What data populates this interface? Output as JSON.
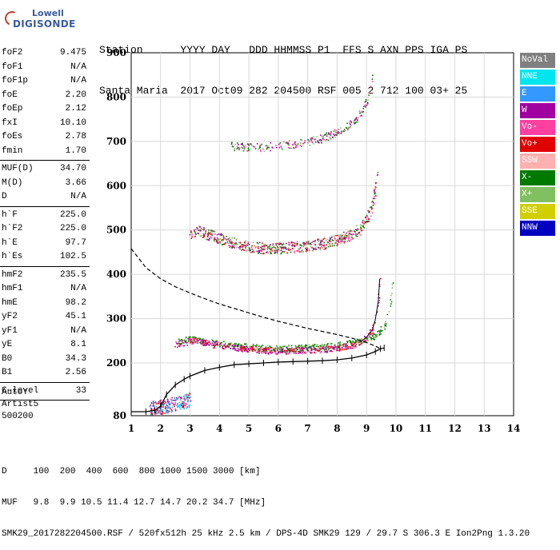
{
  "logo": {
    "top": "Lowell",
    "bottom": "DIGISONDE"
  },
  "header": {
    "line1": "Station      YYYY DAY   DDD HHMMSS P1  FFS S AXN PPS IGA PS",
    "line2": "Santa Maria  2017 Oct09 282 204500 RSF 005 2 712 100 03+ 25"
  },
  "params_groups": [
    [
      {
        "k": "foF2",
        "v": "9.475"
      },
      {
        "k": "foF1",
        "v": "N/A"
      },
      {
        "k": "foF1p",
        "v": "N/A"
      },
      {
        "k": "foE",
        "v": "2.20"
      },
      {
        "k": "foEp",
        "v": "2.12"
      },
      {
        "k": "fxI",
        "v": "10.10"
      },
      {
        "k": "foEs",
        "v": "2.78"
      },
      {
        "k": "fmin",
        "v": "1.70"
      }
    ],
    [
      {
        "k": "MUF(D)",
        "v": "34.70"
      },
      {
        "k": "M(D)",
        "v": "3.66"
      },
      {
        "k": "D",
        "v": "N/A"
      }
    ],
    [
      {
        "k": "h`F",
        "v": "225.0"
      },
      {
        "k": "h`F2",
        "v": "225.0"
      },
      {
        "k": "h`E",
        "v": "97.7"
      },
      {
        "k": "h`Es",
        "v": "102.5"
      }
    ],
    [
      {
        "k": "hmF2",
        "v": "235.5"
      },
      {
        "k": "hmF1",
        "v": "N/A"
      },
      {
        "k": "hmE",
        "v": "98.2"
      },
      {
        "k": "yF2",
        "v": "45.1"
      },
      {
        "k": "yF1",
        "v": "N/A"
      },
      {
        "k": "yE",
        "v": "8.1"
      },
      {
        "k": "B0",
        "v": "34.3"
      },
      {
        "k": "B1",
        "v": "2.56"
      }
    ],
    [
      {
        "k": "C-level",
        "v": "33"
      }
    ]
  ],
  "auto": {
    "line1": "Auto:",
    "line2": "Artist5",
    "line3": "500200"
  },
  "legend": [
    {
      "label": "NoVal",
      "color": "#808080",
      "text": "#ffffff"
    },
    {
      "label": "NNE",
      "color": "#00e5ee",
      "text": "#ffffff"
    },
    {
      "label": "E",
      "color": "#3399ff",
      "text": "#ffffff"
    },
    {
      "label": "W",
      "color": "#a000a0",
      "text": "#ffffff"
    },
    {
      "label": "Vo-",
      "color": "#ff40a0",
      "text": "#ffffff"
    },
    {
      "label": "Vo+",
      "color": "#e00000",
      "text": "#ffffff"
    },
    {
      "label": "SSW",
      "color": "#ffb0b0",
      "text": "#ffffff"
    },
    {
      "label": "X-",
      "color": "#007a00",
      "text": "#ffffff"
    },
    {
      "label": "X+",
      "color": "#80c060",
      "text": "#ffffff"
    },
    {
      "label": "SSE",
      "color": "#d0d000",
      "text": "#ffffff"
    },
    {
      "label": "NNW",
      "color": "#0000c0",
      "text": "#ffffff"
    }
  ],
  "footer": {
    "line1": "D     100  200  400  600  800 1000 1500 3000 [km]",
    "line2": "MUF   9.8  9.9 10.5 11.4 12.7 14.7 20.2 34.7 [MHz]",
    "line3": "SMK29_2017282204500.RSF / 520fx512h 25 kHz 2.5 km / DPS-4D SMK29 129 / 29.7 S 306.3 E Ion2Png 1.3.20"
  },
  "chart_data": {
    "type": "scatter",
    "xlim": [
      1,
      14
    ],
    "ylim": [
      80,
      900
    ],
    "xticks": [
      "1",
      "2",
      "3",
      "4",
      "5",
      "6",
      "7",
      "8",
      "9",
      "10",
      "11",
      "12",
      "13",
      "14"
    ],
    "yticks": [
      "80",
      "200",
      "300",
      "400",
      "500",
      "600",
      "700",
      "800",
      "900"
    ],
    "grid": true,
    "traces": {
      "ordinary_trace": [
        [
          1.0,
          89
        ],
        [
          1.5,
          89
        ],
        [
          1.8,
          92
        ],
        [
          2.0,
          102
        ],
        [
          2.2,
          128
        ],
        [
          2.5,
          150
        ],
        [
          2.8,
          163
        ],
        [
          3.0,
          170
        ],
        [
          3.5,
          183
        ],
        [
          4.0,
          190
        ],
        [
          4.5,
          196
        ],
        [
          5.0,
          198
        ],
        [
          5.5,
          200
        ],
        [
          6.0,
          202
        ],
        [
          6.5,
          203
        ],
        [
          7.0,
          204
        ],
        [
          7.5,
          205
        ],
        [
          8.0,
          207
        ],
        [
          8.5,
          211
        ],
        [
          9.0,
          218
        ],
        [
          9.3,
          226
        ],
        [
          9.475,
          232
        ],
        [
          9.6,
          234
        ]
      ],
      "density_profile": [
        [
          1.0,
          458
        ],
        [
          1.5,
          415
        ],
        [
          2.0,
          390
        ],
        [
          2.5,
          372
        ],
        [
          3.0,
          358
        ],
        [
          3.5,
          345
        ],
        [
          4.0,
          333
        ],
        [
          4.5,
          323
        ],
        [
          5.0,
          313
        ],
        [
          5.5,
          303
        ],
        [
          6.0,
          294
        ],
        [
          6.5,
          286
        ],
        [
          7.0,
          278
        ],
        [
          7.5,
          271
        ],
        [
          8.0,
          264
        ],
        [
          8.5,
          256
        ],
        [
          9.0,
          246
        ],
        [
          9.3,
          238
        ],
        [
          9.475,
          232
        ]
      ],
      "F2_o_echo": [
        [
          2.5,
          243
        ],
        [
          2.8,
          246
        ],
        [
          3.0,
          250
        ],
        [
          3.2,
          252
        ],
        [
          3.5,
          246
        ],
        [
          4.0,
          240
        ],
        [
          4.5,
          236
        ],
        [
          5.0,
          232
        ],
        [
          5.5,
          229
        ],
        [
          6.0,
          228
        ],
        [
          6.5,
          229
        ],
        [
          7.0,
          230
        ],
        [
          7.5,
          232
        ],
        [
          8.0,
          235
        ],
        [
          8.5,
          241
        ],
        [
          8.8,
          248
        ],
        [
          9.0,
          258
        ],
        [
          9.2,
          275
        ],
        [
          9.3,
          298
        ],
        [
          9.4,
          340
        ],
        [
          9.45,
          390
        ]
      ],
      "F2_x_echo": [
        [
          2.6,
          250
        ],
        [
          3.0,
          255
        ],
        [
          3.5,
          250
        ],
        [
          4.0,
          244
        ],
        [
          4.5,
          240
        ],
        [
          5.0,
          237
        ],
        [
          5.5,
          234
        ],
        [
          6.0,
          233
        ],
        [
          6.5,
          234
        ],
        [
          7.0,
          235
        ],
        [
          7.5,
          237
        ],
        [
          8.0,
          240
        ],
        [
          8.5,
          246
        ],
        [
          9.0,
          253
        ],
        [
          9.3,
          262
        ],
        [
          9.6,
          285
        ],
        [
          9.8,
          330
        ],
        [
          9.9,
          400
        ]
      ],
      "second_hop": [
        [
          3.0,
          490
        ],
        [
          3.3,
          500
        ],
        [
          3.6,
          490
        ],
        [
          4.0,
          482
        ],
        [
          4.5,
          470
        ],
        [
          5.0,
          463
        ],
        [
          5.5,
          460
        ],
        [
          6.0,
          460
        ],
        [
          6.5,
          462
        ],
        [
          7.0,
          465
        ],
        [
          7.5,
          470
        ],
        [
          8.0,
          478
        ],
        [
          8.5,
          492
        ],
        [
          8.8,
          505
        ],
        [
          9.0,
          525
        ],
        [
          9.2,
          560
        ],
        [
          9.3,
          600
        ],
        [
          9.4,
          640
        ]
      ],
      "third_hop": [
        [
          4.4,
          690
        ],
        [
          5.0,
          687
        ],
        [
          5.5,
          688
        ],
        [
          6.0,
          690
        ],
        [
          6.5,
          695
        ],
        [
          7.0,
          700
        ],
        [
          7.5,
          708
        ],
        [
          8.0,
          722
        ],
        [
          8.5,
          742
        ],
        [
          8.8,
          765
        ],
        [
          9.0,
          790
        ],
        [
          9.1,
          820
        ],
        [
          9.2,
          850
        ]
      ],
      "E_region": [
        [
          1.6,
          97
        ],
        [
          1.8,
          99
        ],
        [
          2.0,
          101
        ],
        [
          2.2,
          103
        ],
        [
          2.5,
          108
        ],
        [
          2.8,
          113
        ],
        [
          3.0,
          118
        ]
      ]
    }
  }
}
